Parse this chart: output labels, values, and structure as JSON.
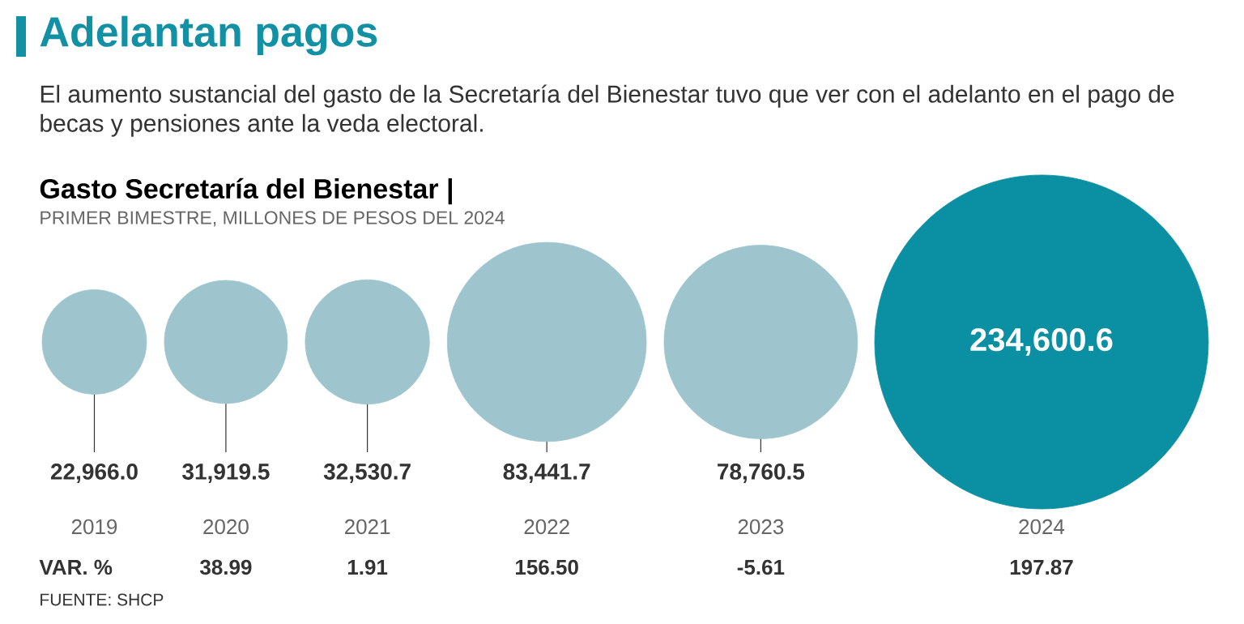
{
  "chart_data": {
    "type": "other",
    "title": "Adelantan pagos",
    "subtitle": "El aumento sustancial del gasto de la Secretaría del Bienestar tuvo que ver con el adelanto en el pago de becas y pensiones ante la veda electoral.",
    "categories": [
      "2019",
      "2020",
      "2021",
      "2022",
      "2023",
      "2024"
    ],
    "values": [
      22966.0,
      31919.5,
      32530.7,
      83441.7,
      78760.5,
      234600.6
    ],
    "colors": [
      "#9ec5cd",
      "#9ec5cd",
      "#9ec5cd",
      "#9ec5cd",
      "#9ec5cd",
      "#0a8fa3"
    ],
    "value_labels": [
      "22,966.0",
      "31,919.5",
      "32,530.7",
      "83,441.7",
      "78,760.5",
      "234,600.6"
    ],
    "annotations": [
      "Gasto Secretaría del Bienestar |",
      "PRIMER BIMESTRE, MILLONES DE PESOS DEL 2024",
      "VAR. %",
      "FUENTE: SHCP",
      "38.99",
      "1.91",
      "156.50",
      "-5.61",
      "197.87"
    ]
  }
}
